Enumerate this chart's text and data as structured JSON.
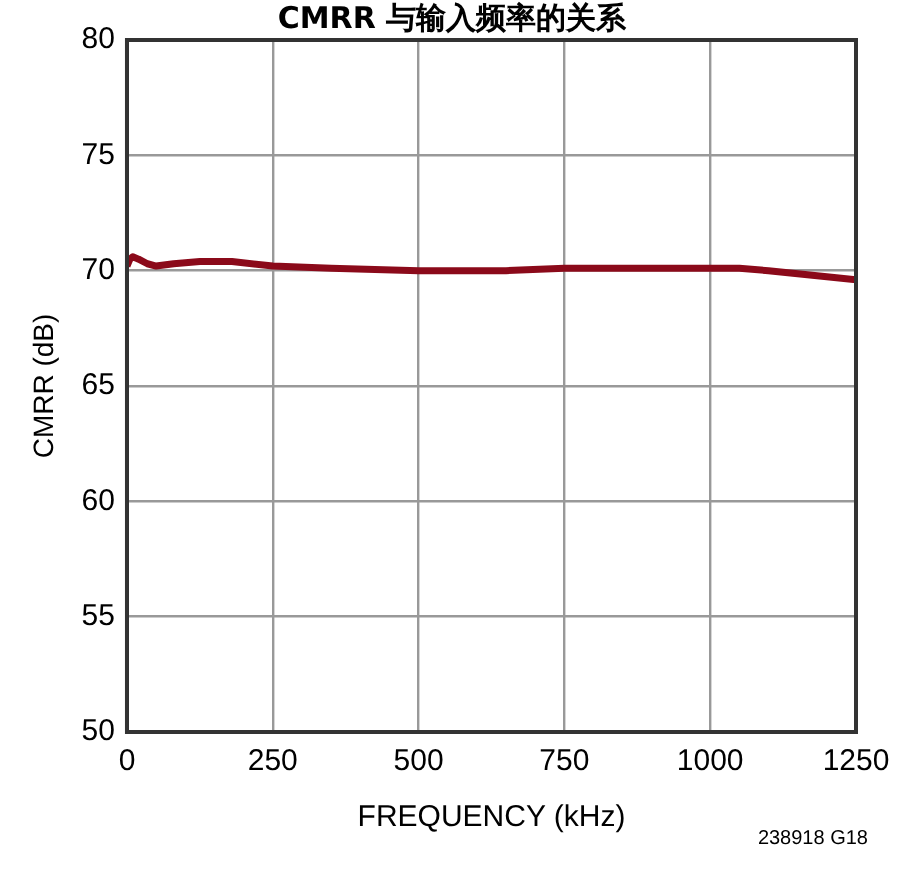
{
  "chart_data": {
    "type": "line",
    "title": "CMRR 与输入频率的关系",
    "xlabel": "FREQUENCY (kHz)",
    "ylabel": "CMRR (dB)",
    "annotations": [
      "238918 G18"
    ],
    "series": [
      {
        "color": "#8b0a1a",
        "x": [
          0,
          5,
          10,
          20,
          35,
          50,
          80,
          125,
          180,
          250,
          350,
          500,
          650,
          750,
          900,
          1000,
          1050,
          1100,
          1175,
          1250
        ],
        "values": [
          70.2,
          70.5,
          70.6,
          70.5,
          70.3,
          70.2,
          70.3,
          70.4,
          70.4,
          70.2,
          70.1,
          70.0,
          70.0,
          70.1,
          70.1,
          70.1,
          70.1,
          70.0,
          69.8,
          69.6
        ]
      }
    ],
    "xlim": [
      0,
      1250
    ],
    "xticks": [
      0,
      250,
      500,
      750,
      1000,
      1250
    ],
    "ylim": [
      50,
      80
    ],
    "yticks": [
      50,
      55,
      60,
      65,
      70,
      75,
      80
    ],
    "grid": true,
    "legend": false
  }
}
